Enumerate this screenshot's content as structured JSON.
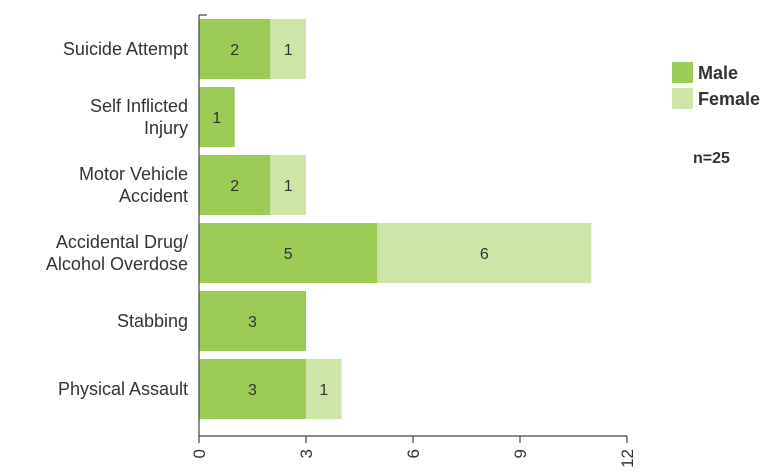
{
  "chart_data": {
    "type": "bar",
    "orientation": "horizontal",
    "stacked": true,
    "categories": [
      [
        "Suicide Attempt"
      ],
      [
        "Self Inflicted",
        "Injury"
      ],
      [
        "Motor Vehicle",
        "Accident"
      ],
      [
        "Accidental Drug/",
        "Alcohol Overdose"
      ],
      [
        "Stabbing"
      ],
      [
        "Physical Assault"
      ]
    ],
    "series": [
      {
        "name": "Male",
        "values": [
          2,
          1,
          2,
          5,
          3,
          3
        ],
        "color": "#9ccc55"
      },
      {
        "name": "Female",
        "values": [
          1,
          0,
          1,
          6,
          0,
          1
        ],
        "color": "#cde6a8"
      }
    ],
    "xlim": [
      0,
      12
    ],
    "xticks": [
      0,
      3,
      6,
      9,
      12
    ],
    "title": "",
    "xlabel": "",
    "ylabel": "",
    "legend_position": "top-right",
    "grid": false,
    "annotation": "n=25"
  }
}
